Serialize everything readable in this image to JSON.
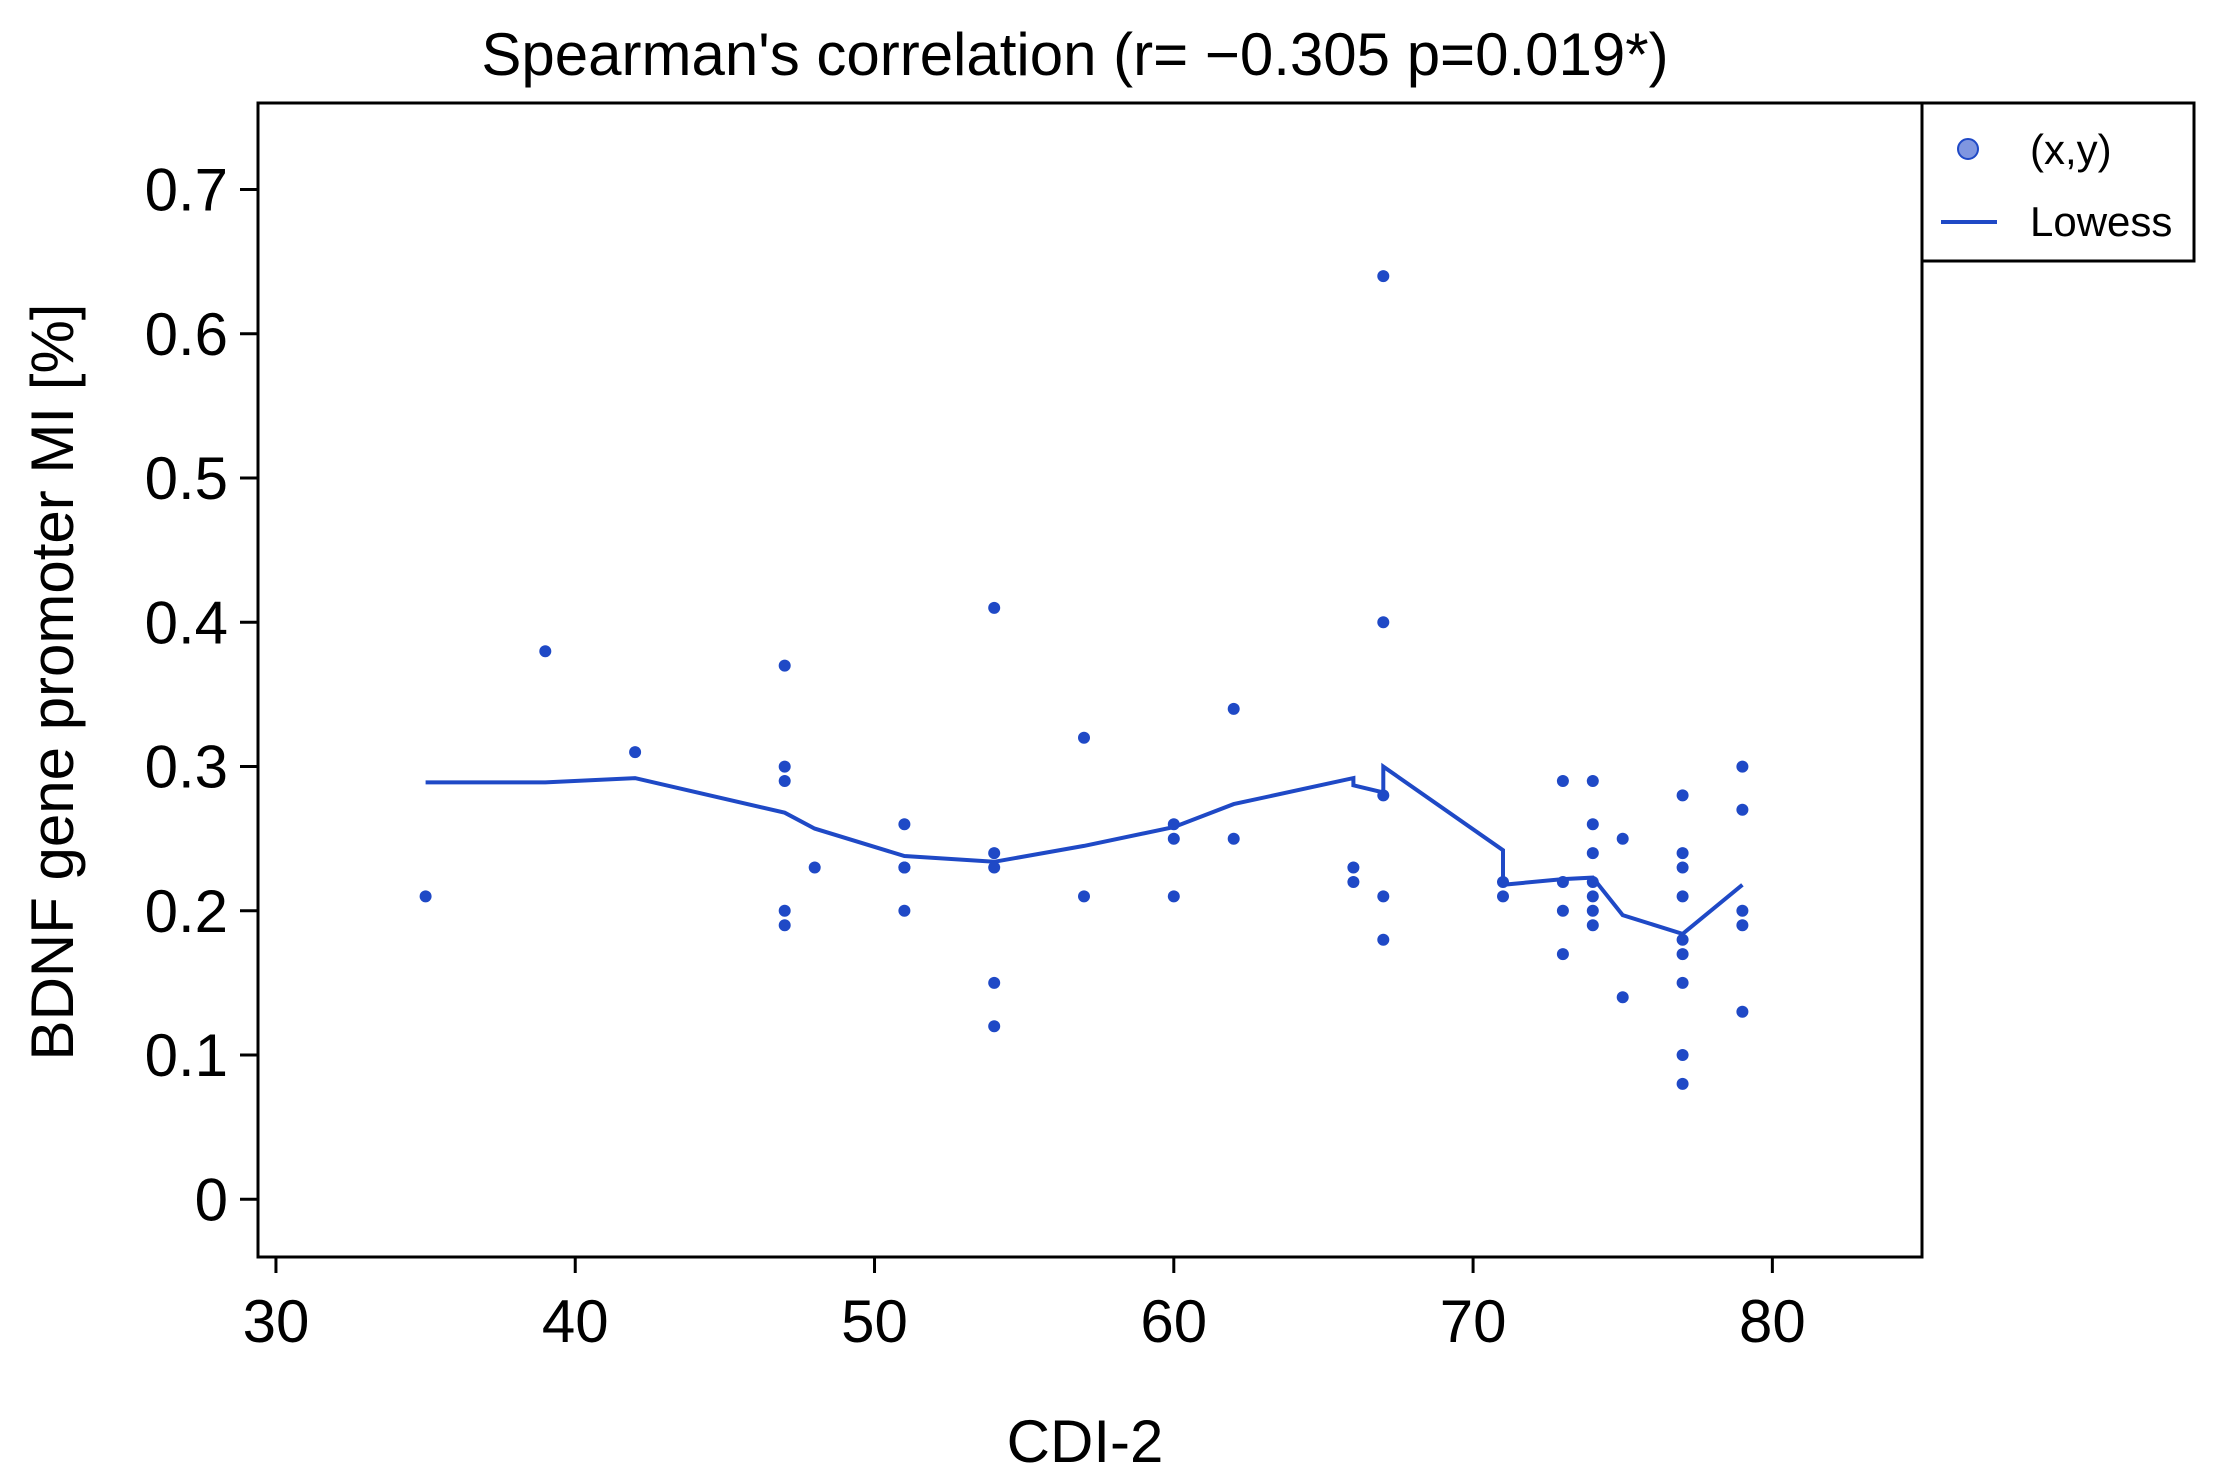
{
  "chart_data": {
    "type": "scatter",
    "title": "Spearman's correlation (r= −0.305 p=0.019*)",
    "xlabel": "CDI-2",
    "ylabel": "BDNF gene promoter MI [%]",
    "xlim": [
      29.4,
      85.0
    ],
    "ylim": [
      -0.04,
      0.76
    ],
    "xticks": [
      30,
      40,
      50,
      60,
      70,
      80
    ],
    "yticks": [
      0,
      0.1,
      0.2,
      0.3,
      0.4,
      0.5,
      0.6,
      0.7
    ],
    "xtick_labels": [
      "30",
      "40",
      "50",
      "60",
      "70",
      "80"
    ],
    "ytick_labels": [
      "0",
      "0.1",
      "0.2",
      "0.3",
      "0.4",
      "0.5",
      "0.6",
      "0.7"
    ],
    "legend_position": "top-right",
    "series_color": "#1f49c6",
    "series": [
      {
        "name": "(x,y)",
        "kind": "points",
        "x": [
          35,
          39,
          42,
          47,
          47,
          47,
          47,
          47,
          48,
          51,
          51,
          51,
          51,
          54,
          54,
          54,
          54,
          54,
          57,
          57,
          60,
          60,
          60,
          62,
          62,
          66,
          66,
          67,
          67,
          67,
          67,
          67,
          71,
          71,
          73,
          73,
          73,
          73,
          74,
          74,
          74,
          74,
          74,
          74,
          74,
          75,
          75,
          77,
          77,
          77,
          77,
          77,
          77,
          77,
          77,
          77,
          79,
          79,
          79,
          79,
          79
        ],
        "y": [
          0.21,
          0.38,
          0.31,
          0.37,
          0.3,
          0.29,
          0.2,
          0.19,
          0.23,
          0.26,
          0.23,
          0.23,
          0.2,
          0.41,
          0.24,
          0.23,
          0.15,
          0.12,
          0.32,
          0.21,
          0.26,
          0.25,
          0.21,
          0.34,
          0.25,
          0.23,
          0.22,
          0.64,
          0.4,
          0.21,
          0.18,
          0.28,
          0.22,
          0.21,
          0.29,
          0.22,
          0.2,
          0.17,
          0.29,
          0.26,
          0.24,
          0.21,
          0.2,
          0.19,
          0.22,
          0.25,
          0.14,
          0.28,
          0.24,
          0.23,
          0.21,
          0.18,
          0.17,
          0.15,
          0.1,
          0.08,
          0.3,
          0.27,
          0.2,
          0.19,
          0.13
        ]
      },
      {
        "name": "Lowess",
        "kind": "line",
        "x": [
          35,
          39,
          42,
          47,
          48,
          51,
          54,
          57,
          60,
          62,
          66,
          66,
          67,
          67,
          71,
          71,
          73,
          74,
          75,
          77,
          79
        ],
        "y": [
          0.289,
          0.289,
          0.292,
          0.268,
          0.257,
          0.238,
          0.234,
          0.245,
          0.258,
          0.274,
          0.292,
          0.287,
          0.282,
          0.3,
          0.242,
          0.218,
          0.222,
          0.223,
          0.197,
          0.184,
          0.218
        ]
      }
    ]
  }
}
